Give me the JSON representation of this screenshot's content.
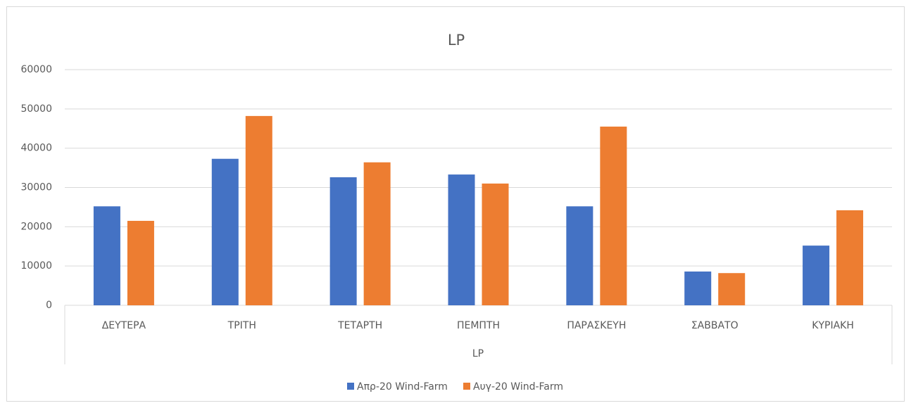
{
  "chart_data": {
    "type": "bar",
    "title": "LP",
    "xlabel": "LP",
    "categories": [
      "ΔΕΥΤΕΡΑ",
      "ΤΡΙΤΗ",
      "ΤΕΤΑΡΤΗ",
      "ΠΕΜΠΤΗ",
      "ΠΑΡΑΣΚΕΥΗ",
      "ΣΑΒΒΑΤΟ",
      "ΚΥΡΙΑΚΗ"
    ],
    "series": [
      {
        "name": "Απρ-20 Wind-Farm",
        "color": "#4472c4",
        "values": [
          25200,
          37300,
          32600,
          33300,
          25200,
          8600,
          15200
        ]
      },
      {
        "name": "Αυγ-20 Wind-Farm",
        "color": "#ed7d31",
        "values": [
          21500,
          48200,
          36400,
          31000,
          45500,
          8200,
          24200
        ]
      }
    ],
    "ylim": [
      0,
      60000
    ],
    "yticks": [
      0,
      10000,
      20000,
      30000,
      40000,
      50000,
      60000
    ],
    "grid": true,
    "legend": "bottom"
  }
}
